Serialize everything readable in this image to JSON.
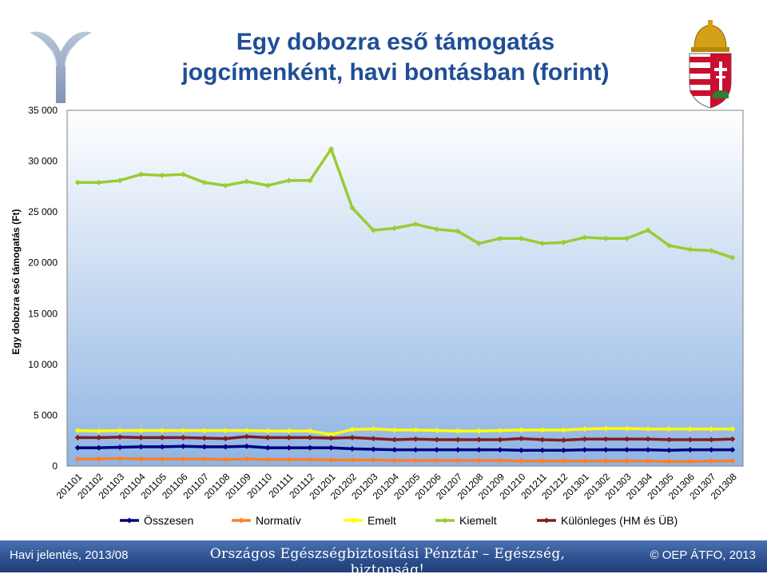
{
  "header": {
    "title_line1": "Egy dobozra eső támogatás",
    "title_line2": "jogcímenként, havi bontásban (forint)"
  },
  "footer": {
    "left": "Havi jelentés, 2013/08",
    "center": "Országos Egészségbiztosítási Pénztár – Egészség, biztonság!",
    "right": "OEP ÁTFO, 2013",
    "copyright_symbol": "©"
  },
  "logos": {
    "left": "oep-logo-icon",
    "right": "hungarian-coat-of-arms-icon"
  },
  "colors": {
    "plot_bg_top": "#ffffff",
    "plot_bg_bottom": "#8fb4e3",
    "footer_bg": "#2d4f8e",
    "title": "#1f4e96"
  },
  "chart_data": {
    "type": "line",
    "ylabel": "Egy dobozra eső támogatás (Ft)",
    "xlabel": "",
    "ylim": [
      0,
      35000
    ],
    "yticks": [
      0,
      5000,
      10000,
      15000,
      20000,
      25000,
      30000,
      35000
    ],
    "ytick_labels": [
      "0",
      "5 000",
      "10 000",
      "15 000",
      "20 000",
      "25 000",
      "30 000",
      "35 000"
    ],
    "grid": false,
    "legend_position": "bottom",
    "categories": [
      "201101",
      "201102",
      "201103",
      "201104",
      "201105",
      "201106",
      "201107",
      "201108",
      "201109",
      "201110",
      "201111",
      "201112",
      "201201",
      "201202",
      "201203",
      "201204",
      "201205",
      "201206",
      "201207",
      "201208",
      "201209",
      "201210",
      "201211",
      "201212",
      "201301",
      "201302",
      "201303",
      "201304",
      "201305",
      "201306",
      "201307",
      "201308"
    ],
    "series": [
      {
        "name": "Összesen",
        "color": "#000080",
        "values": [
          1800,
          1800,
          1850,
          1900,
          1900,
          1950,
          1900,
          1900,
          1950,
          1800,
          1800,
          1800,
          1800,
          1700,
          1650,
          1600,
          1600,
          1600,
          1600,
          1600,
          1600,
          1550,
          1550,
          1550,
          1600,
          1600,
          1600,
          1600,
          1550,
          1600,
          1600,
          1600
        ]
      },
      {
        "name": "Normatív",
        "color": "#ff7f27",
        "values": [
          700,
          700,
          750,
          700,
          700,
          700,
          700,
          650,
          700,
          650,
          650,
          650,
          600,
          600,
          600,
          550,
          550,
          550,
          550,
          550,
          550,
          500,
          500,
          500,
          500,
          500,
          500,
          500,
          450,
          450,
          500,
          500
        ]
      },
      {
        "name": "Emelt",
        "color": "#ffff00",
        "values": [
          3500,
          3450,
          3500,
          3500,
          3500,
          3500,
          3500,
          3500,
          3500,
          3450,
          3450,
          3450,
          3100,
          3600,
          3650,
          3550,
          3550,
          3500,
          3450,
          3450,
          3500,
          3550,
          3550,
          3550,
          3650,
          3700,
          3700,
          3650,
          3650,
          3650,
          3650,
          3650
        ]
      },
      {
        "name": "Kiemelt",
        "color": "#99cc33",
        "values": [
          27900,
          27900,
          28100,
          28700,
          28600,
          28700,
          27900,
          27600,
          28000,
          27600,
          28100,
          28100,
          31200,
          25400,
          23200,
          23400,
          23800,
          23300,
          23100,
          21900,
          22400,
          22400,
          21900,
          22000,
          22500,
          22400,
          22400,
          23200,
          21700,
          21300,
          21200,
          20500
        ]
      },
      {
        "name": "Különleges (HM és ÜB)",
        "color": "#7f1f1f",
        "values": [
          2800,
          2800,
          2850,
          2800,
          2800,
          2800,
          2750,
          2700,
          2900,
          2800,
          2800,
          2800,
          2750,
          2800,
          2700,
          2600,
          2650,
          2600,
          2600,
          2600,
          2600,
          2700,
          2600,
          2550,
          2650,
          2650,
          2650,
          2650,
          2600,
          2600,
          2600,
          2650
        ]
      }
    ]
  }
}
